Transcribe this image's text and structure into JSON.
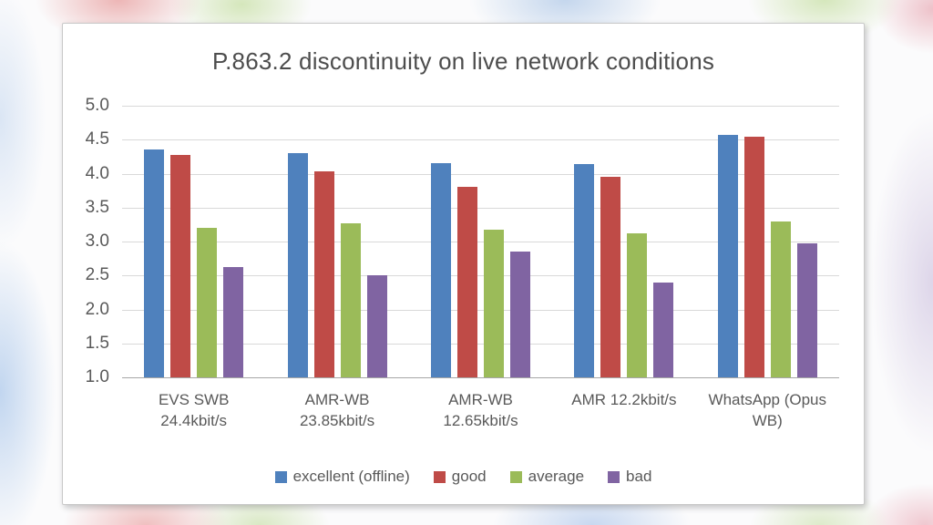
{
  "chart_data": {
    "type": "bar",
    "title": "P.863.2 discontinuity on live network conditions",
    "categories": [
      "EVS SWB 24.4kbit/s",
      "AMR-WB 23.85kbit/s",
      "AMR-WB 12.65kbit/s",
      "AMR 12.2kbit/s",
      "WhatsApp (Opus WB)"
    ],
    "series": [
      {
        "name": "excellent (offline)",
        "color": "#4F81BD",
        "values": [
          4.35,
          4.3,
          4.15,
          4.14,
          4.57
        ]
      },
      {
        "name": "good",
        "color": "#BF4B47",
        "values": [
          4.28,
          4.03,
          3.8,
          3.95,
          4.54
        ]
      },
      {
        "name": "average",
        "color": "#9BBB59",
        "values": [
          3.2,
          3.27,
          3.17,
          3.12,
          3.29
        ]
      },
      {
        "name": "bad",
        "color": "#8064A2",
        "values": [
          2.62,
          2.51,
          2.85,
          2.4,
          2.98
        ]
      }
    ],
    "ylim": [
      1.0,
      5.0
    ],
    "ytick_step": 0.5,
    "ytick_labels": [
      "5.0",
      "4.5",
      "4.0",
      "3.5",
      "3.0",
      "2.5",
      "2.0",
      "1.5",
      "1.0"
    ],
    "grid": true,
    "legend_position": "bottom",
    "colors": {
      "gridline": "#d9d9d9",
      "axis_line": "#a6a6a6",
      "tick_text": "#595959",
      "title_text": "#4d4d4d",
      "panel_bg": "#ffffff"
    }
  }
}
